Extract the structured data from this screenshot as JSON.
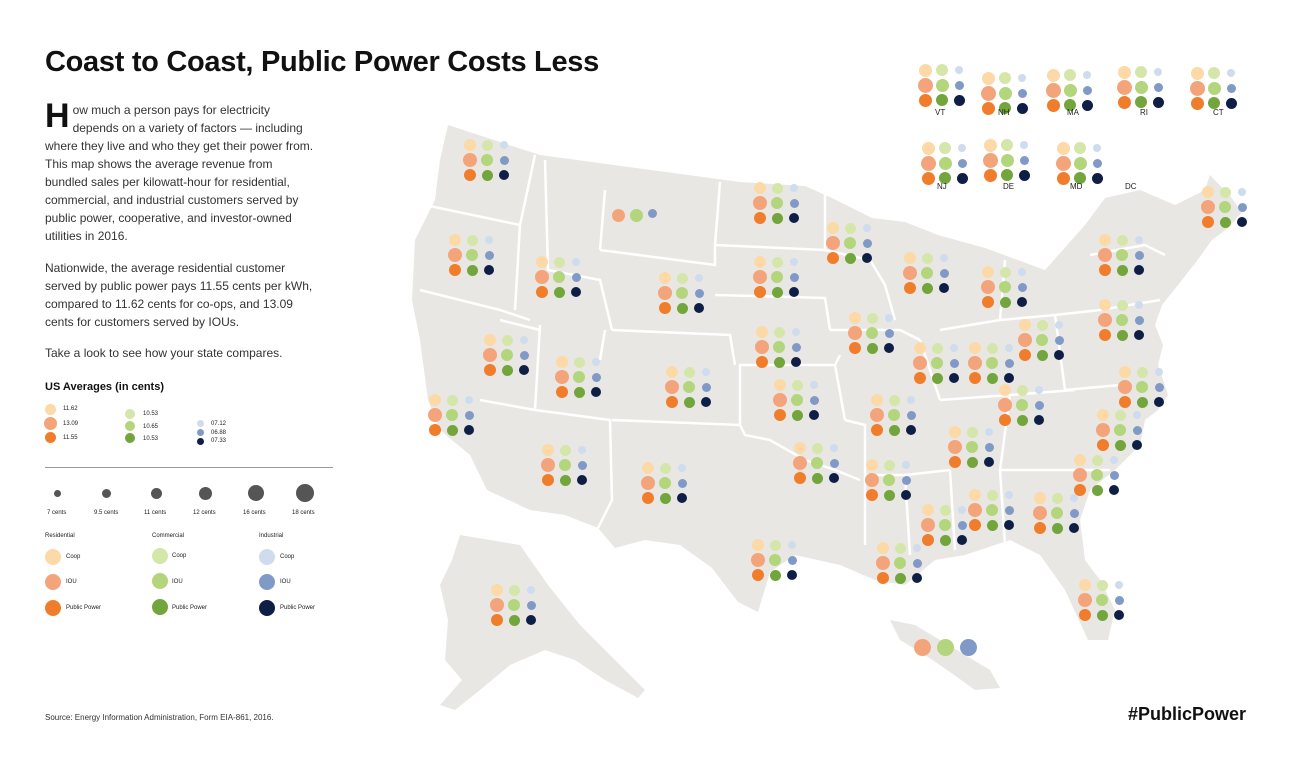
{
  "title": "Coast to Coast, Public Power Costs Less",
  "intro": {
    "dropcap": "H",
    "text": "ow much a person pays for electricity depends on a variety of factors — including where they live and who they get their power from. This map shows the average revenue from bundled sales per kilowatt-hour for residential, commercial, and industrial customers served by public power, cooperative, and investor-owned utilities in 2016."
  },
  "para2": "Nationwide, the average residential customer served by public power pays 11.55 cents per kWh, compared to 11.62 cents for co-ops, and 13.09 cents for customers served by IOUs.",
  "para3": "Take a look to see how your state compares.",
  "us_averages": {
    "heading": "US Averages (in cents)",
    "residential": [
      "11.62",
      "13.09",
      "11.55"
    ],
    "commercial": [
      "10.53",
      "10.65",
      "10.53"
    ],
    "industrial": [
      "07.12",
      "06.88",
      "07.33"
    ],
    "values": {
      "residential": [
        11.62,
        13.09,
        11.55
      ],
      "commercial": [
        10.53,
        10.65,
        10.53
      ],
      "industrial": [
        7.12,
        6.88,
        7.33
      ]
    }
  },
  "size_scale": [
    {
      "label": "7 cents",
      "value": 7
    },
    {
      "label": "9.5 cents",
      "value": 9.5
    },
    {
      "label": "11 cents",
      "value": 11
    },
    {
      "label": "12 cents",
      "value": 12
    },
    {
      "label": "16 cents",
      "value": 16
    },
    {
      "label": "18 cents",
      "value": 18
    }
  ],
  "color_legend": {
    "residential": {
      "title": "Residential",
      "items": [
        "Coop",
        "IOU",
        "Public Power"
      ]
    },
    "commercial": {
      "title": "Commercial",
      "items": [
        "Coop",
        "IOU",
        "Public Power"
      ]
    },
    "industrial": {
      "title": "Industrial",
      "items": [
        "Coop",
        "IOU",
        "Public Power"
      ]
    }
  },
  "colors": {
    "residential": [
      "#fcd9a6",
      "#f4a47a",
      "#f07d2b"
    ],
    "commercial": [
      "#d5e6ab",
      "#b3d57c",
      "#72a53b"
    ],
    "industrial": [
      "#cfdcee",
      "#8099c6",
      "#0e1e45"
    ],
    "map_land": "#e9e7e4",
    "map_border": "#ffffff"
  },
  "inset_states": [
    "VT",
    "NH",
    "MA",
    "RI",
    "CT",
    "NJ",
    "DE",
    "MD",
    "DC"
  ],
  "source": "Source: Energy Information Administration, Form EIA-861, 2016.",
  "hashtag": "#PublicPower"
}
